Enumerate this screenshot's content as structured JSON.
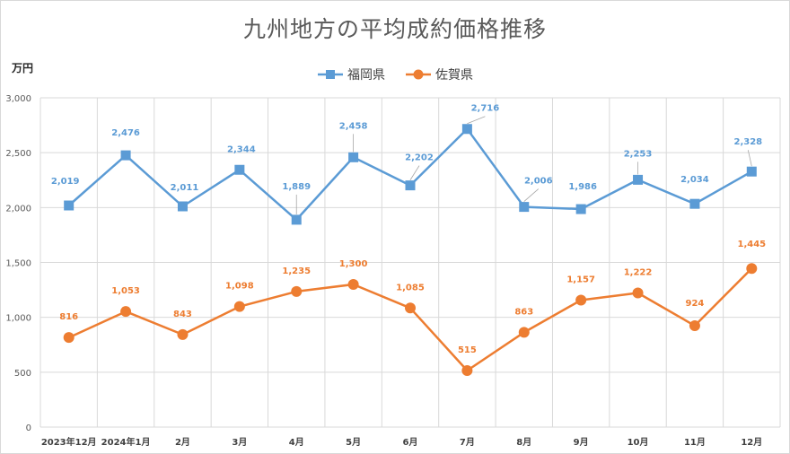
{
  "colors": {
    "fukuoka": "#5b9bd5",
    "saga": "#ed7d31",
    "grid": "#d9d9d9",
    "axis_text": "#595959"
  },
  "chart_data": {
    "type": "line",
    "title": "九州地方の平均成約価格推移",
    "unit_label": "万円",
    "categories": [
      "2023年12月",
      "2024年1月",
      "2月",
      "3月",
      "4月",
      "5月",
      "6月",
      "7月",
      "8月",
      "9月",
      "10月",
      "11月",
      "12月"
    ],
    "ylim": [
      0,
      3000
    ],
    "yticks": [
      0,
      500,
      1000,
      1500,
      2000,
      2500,
      3000
    ],
    "ytick_labels": [
      "0",
      "500",
      "1,000",
      "1,500",
      "2,000",
      "2,500",
      "3,000"
    ],
    "grid": true,
    "legend_position": "top-center",
    "series": [
      {
        "name": "福岡県",
        "marker": "square",
        "values": [
          2019,
          2476,
          2011,
          2344,
          1889,
          2458,
          2202,
          2716,
          2006,
          1986,
          2253,
          2034,
          2328
        ],
        "labels": [
          "2,019",
          "2,476",
          "2,011",
          "2,344",
          "1,889",
          "2,458",
          "2,202",
          "2,716",
          "2,006",
          "1,986",
          "2,253",
          "2,034",
          "2,328"
        ]
      },
      {
        "name": "佐賀県",
        "marker": "circle",
        "values": [
          816,
          1053,
          843,
          1098,
          1235,
          1300,
          1085,
          515,
          863,
          1157,
          1222,
          924,
          1445
        ],
        "labels": [
          "816",
          "1,053",
          "843",
          "1,098",
          "1,235",
          "1,300",
          "1,085",
          "515",
          "863",
          "1,157",
          "1,222",
          "924",
          "1,445"
        ]
      }
    ]
  }
}
